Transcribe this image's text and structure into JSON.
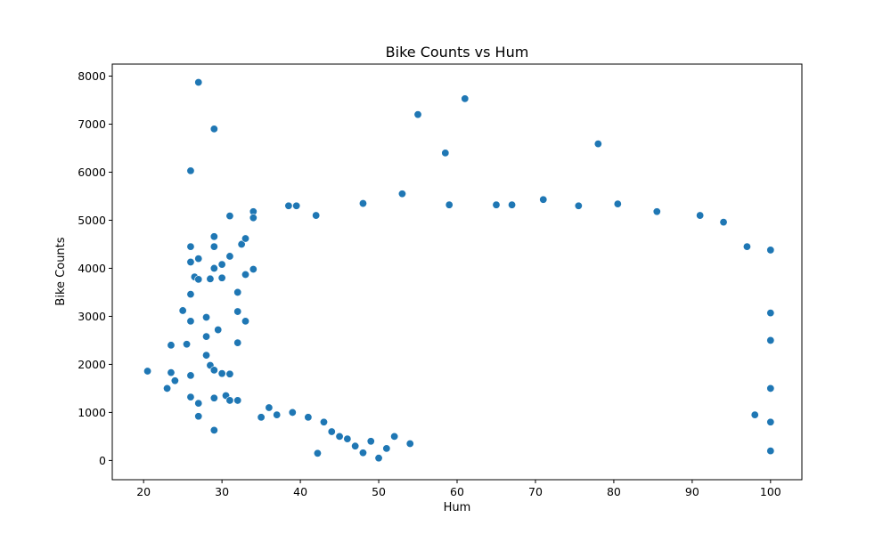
{
  "chart_data": {
    "type": "scatter",
    "title": "Bike Counts vs Hum",
    "xlabel": "Hum",
    "ylabel": "Bike Counts",
    "xlim": [
      16,
      104
    ],
    "ylim": [
      -400,
      8250
    ],
    "xticks": [
      20,
      30,
      40,
      50,
      60,
      70,
      80,
      90,
      100
    ],
    "yticks": [
      0,
      1000,
      2000,
      3000,
      4000,
      5000,
      6000,
      7000,
      8000
    ],
    "grid": false,
    "marker_color": "#1f77b4",
    "marker_edge_color": "#ffffff",
    "series": [
      {
        "points": [
          [
            20.5,
            1860
          ],
          [
            23,
            1500
          ],
          [
            23.5,
            2400
          ],
          [
            23.5,
            1830
          ],
          [
            24,
            1660
          ],
          [
            25,
            3120
          ],
          [
            25.5,
            2420
          ],
          [
            26,
            6030
          ],
          [
            26,
            4450
          ],
          [
            26,
            4130
          ],
          [
            26,
            3460
          ],
          [
            26,
            2900
          ],
          [
            26,
            1770
          ],
          [
            26,
            1320
          ],
          [
            26.5,
            3820
          ],
          [
            27,
            7870
          ],
          [
            27,
            4200
          ],
          [
            27,
            3770
          ],
          [
            27,
            1190
          ],
          [
            27,
            920
          ],
          [
            28,
            2980
          ],
          [
            28,
            2580
          ],
          [
            28,
            2190
          ],
          [
            28.5,
            3780
          ],
          [
            28.5,
            1980
          ],
          [
            29,
            6900
          ],
          [
            29,
            4660
          ],
          [
            29,
            4450
          ],
          [
            29,
            4000
          ],
          [
            29,
            1880
          ],
          [
            29,
            1300
          ],
          [
            29,
            630
          ],
          [
            29.5,
            2720
          ],
          [
            30,
            4080
          ],
          [
            30,
            3800
          ],
          [
            30,
            1810
          ],
          [
            30.5,
            1350
          ],
          [
            31,
            5090
          ],
          [
            31,
            4250
          ],
          [
            31,
            1800
          ],
          [
            31,
            1250
          ],
          [
            32,
            3500
          ],
          [
            32,
            3100
          ],
          [
            32,
            2450
          ],
          [
            32,
            1250
          ],
          [
            32.5,
            4500
          ],
          [
            33,
            4620
          ],
          [
            33,
            3870
          ],
          [
            33,
            2900
          ],
          [
            34,
            5180
          ],
          [
            34,
            5050
          ],
          [
            34,
            3980
          ],
          [
            42.2,
            150
          ],
          [
            50,
            50
          ],
          [
            55,
            7200
          ],
          [
            58.5,
            6400
          ],
          [
            61,
            7530
          ],
          [
            78,
            6590
          ],
          [
            85.5,
            5180
          ],
          [
            91,
            5100
          ],
          [
            94,
            4960
          ],
          [
            97,
            4450
          ],
          [
            98,
            950
          ],
          [
            100,
            4380
          ],
          [
            100,
            3070
          ],
          [
            100,
            2500
          ],
          [
            100,
            1500
          ],
          [
            100,
            800
          ],
          [
            100,
            200
          ],
          [
            38.5,
            5300
          ],
          [
            39.5,
            5300
          ],
          [
            42,
            5100
          ],
          [
            48,
            5350
          ],
          [
            53,
            5550
          ],
          [
            59,
            5320
          ],
          [
            65,
            5320
          ],
          [
            67,
            5320
          ],
          [
            71,
            5430
          ],
          [
            75.5,
            5300
          ],
          [
            80.5,
            5340
          ],
          [
            47,
            300
          ],
          [
            48,
            160
          ],
          [
            49,
            400
          ],
          [
            51,
            250
          ],
          [
            52,
            500
          ],
          [
            54,
            350
          ],
          [
            44,
            600
          ],
          [
            45,
            500
          ],
          [
            46,
            450
          ],
          [
            43,
            800
          ],
          [
            41,
            900
          ],
          [
            39,
            1000
          ],
          [
            37,
            950
          ],
          [
            36,
            1100
          ],
          [
            35,
            900
          ]
        ]
      }
    ]
  }
}
